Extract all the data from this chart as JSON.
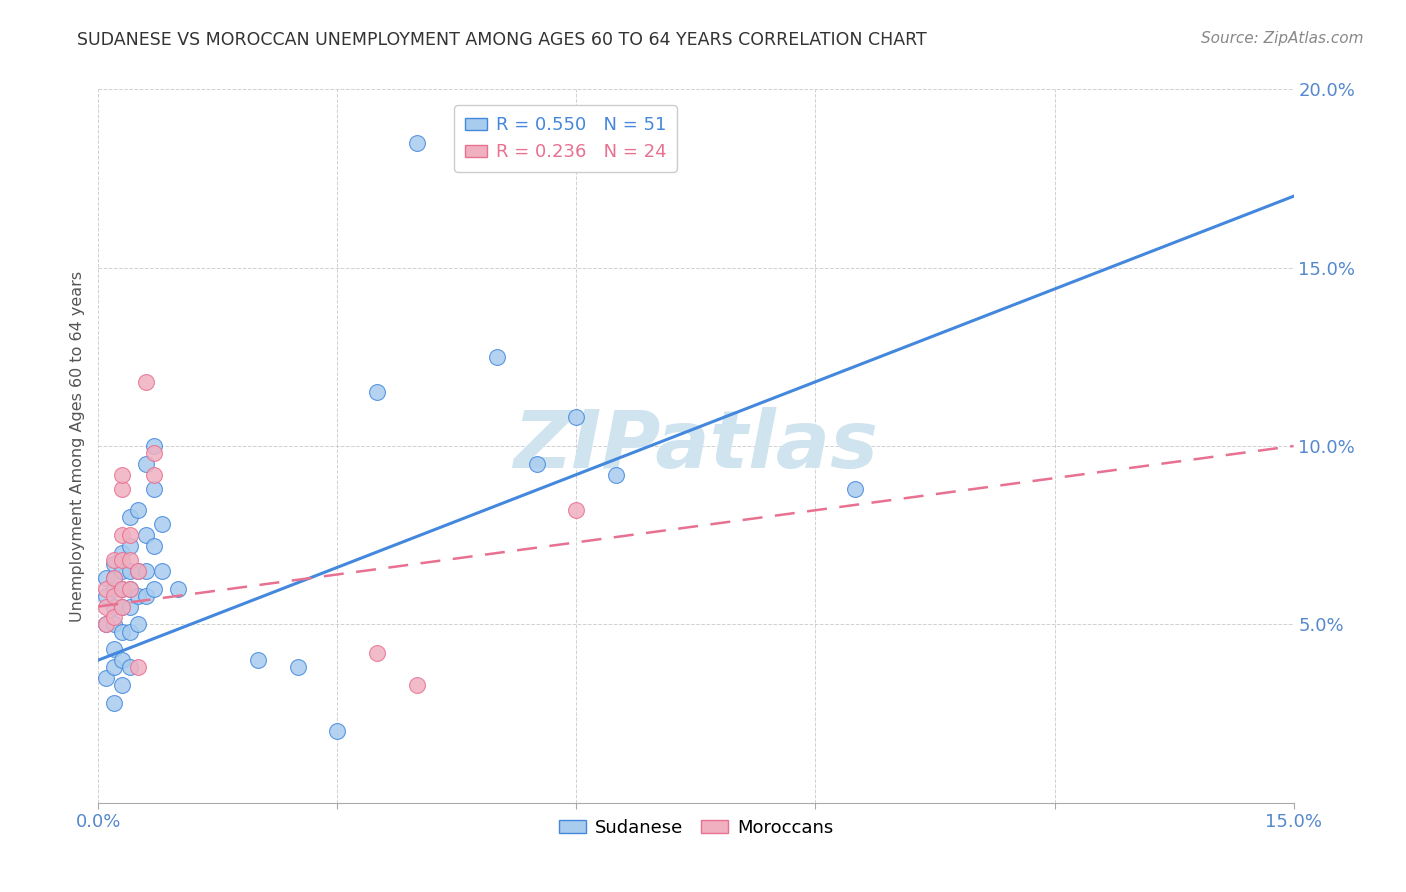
{
  "title": "SUDANESE VS MOROCCAN UNEMPLOYMENT AMONG AGES 60 TO 64 YEARS CORRELATION CHART",
  "source": "Source: ZipAtlas.com",
  "ylabel": "Unemployment Among Ages 60 to 64 years",
  "xlim": [
    0,
    0.15
  ],
  "ylim": [
    0,
    0.2
  ],
  "xticks": [
    0.0,
    0.03,
    0.06,
    0.09,
    0.12,
    0.15
  ],
  "yticks": [
    0.0,
    0.05,
    0.1,
    0.15,
    0.2
  ],
  "sudanese_points": [
    [
      0.001,
      0.035
    ],
    [
      0.001,
      0.05
    ],
    [
      0.001,
      0.058
    ],
    [
      0.001,
      0.063
    ],
    [
      0.002,
      0.028
    ],
    [
      0.002,
      0.038
    ],
    [
      0.002,
      0.043
    ],
    [
      0.002,
      0.05
    ],
    [
      0.002,
      0.055
    ],
    [
      0.002,
      0.06
    ],
    [
      0.002,
      0.063
    ],
    [
      0.002,
      0.067
    ],
    [
      0.003,
      0.033
    ],
    [
      0.003,
      0.04
    ],
    [
      0.003,
      0.048
    ],
    [
      0.003,
      0.055
    ],
    [
      0.003,
      0.06
    ],
    [
      0.003,
      0.065
    ],
    [
      0.003,
      0.07
    ],
    [
      0.004,
      0.038
    ],
    [
      0.004,
      0.048
    ],
    [
      0.004,
      0.055
    ],
    [
      0.004,
      0.06
    ],
    [
      0.004,
      0.065
    ],
    [
      0.004,
      0.072
    ],
    [
      0.004,
      0.08
    ],
    [
      0.005,
      0.05
    ],
    [
      0.005,
      0.058
    ],
    [
      0.005,
      0.065
    ],
    [
      0.005,
      0.082
    ],
    [
      0.006,
      0.058
    ],
    [
      0.006,
      0.065
    ],
    [
      0.006,
      0.075
    ],
    [
      0.006,
      0.095
    ],
    [
      0.007,
      0.06
    ],
    [
      0.007,
      0.072
    ],
    [
      0.007,
      0.088
    ],
    [
      0.007,
      0.1
    ],
    [
      0.008,
      0.065
    ],
    [
      0.008,
      0.078
    ],
    [
      0.04,
      0.185
    ],
    [
      0.05,
      0.125
    ],
    [
      0.06,
      0.108
    ],
    [
      0.065,
      0.092
    ],
    [
      0.095,
      0.088
    ],
    [
      0.035,
      0.115
    ],
    [
      0.055,
      0.095
    ],
    [
      0.01,
      0.06
    ],
    [
      0.02,
      0.04
    ],
    [
      0.025,
      0.038
    ],
    [
      0.03,
      0.02
    ]
  ],
  "moroccan_points": [
    [
      0.001,
      0.05
    ],
    [
      0.001,
      0.055
    ],
    [
      0.001,
      0.06
    ],
    [
      0.002,
      0.052
    ],
    [
      0.002,
      0.058
    ],
    [
      0.002,
      0.063
    ],
    [
      0.002,
      0.068
    ],
    [
      0.003,
      0.055
    ],
    [
      0.003,
      0.06
    ],
    [
      0.003,
      0.068
    ],
    [
      0.003,
      0.075
    ],
    [
      0.003,
      0.088
    ],
    [
      0.003,
      0.092
    ],
    [
      0.004,
      0.06
    ],
    [
      0.004,
      0.068
    ],
    [
      0.004,
      0.075
    ],
    [
      0.005,
      0.065
    ],
    [
      0.006,
      0.118
    ],
    [
      0.007,
      0.092
    ],
    [
      0.007,
      0.098
    ],
    [
      0.035,
      0.042
    ],
    [
      0.04,
      0.033
    ],
    [
      0.06,
      0.082
    ],
    [
      0.005,
      0.038
    ]
  ],
  "sudanese_line_color": "#4488dd",
  "moroccan_line_color": "#e87090",
  "sudanese_dot_color": "#a8ccee",
  "moroccan_dot_color": "#f0b0c0",
  "watermark_color": "#d0e4f0",
  "background_color": "#ffffff",
  "grid_color": "#cccccc",
  "tick_color": "#5588cc",
  "title_color": "#333333",
  "source_color": "#888888"
}
